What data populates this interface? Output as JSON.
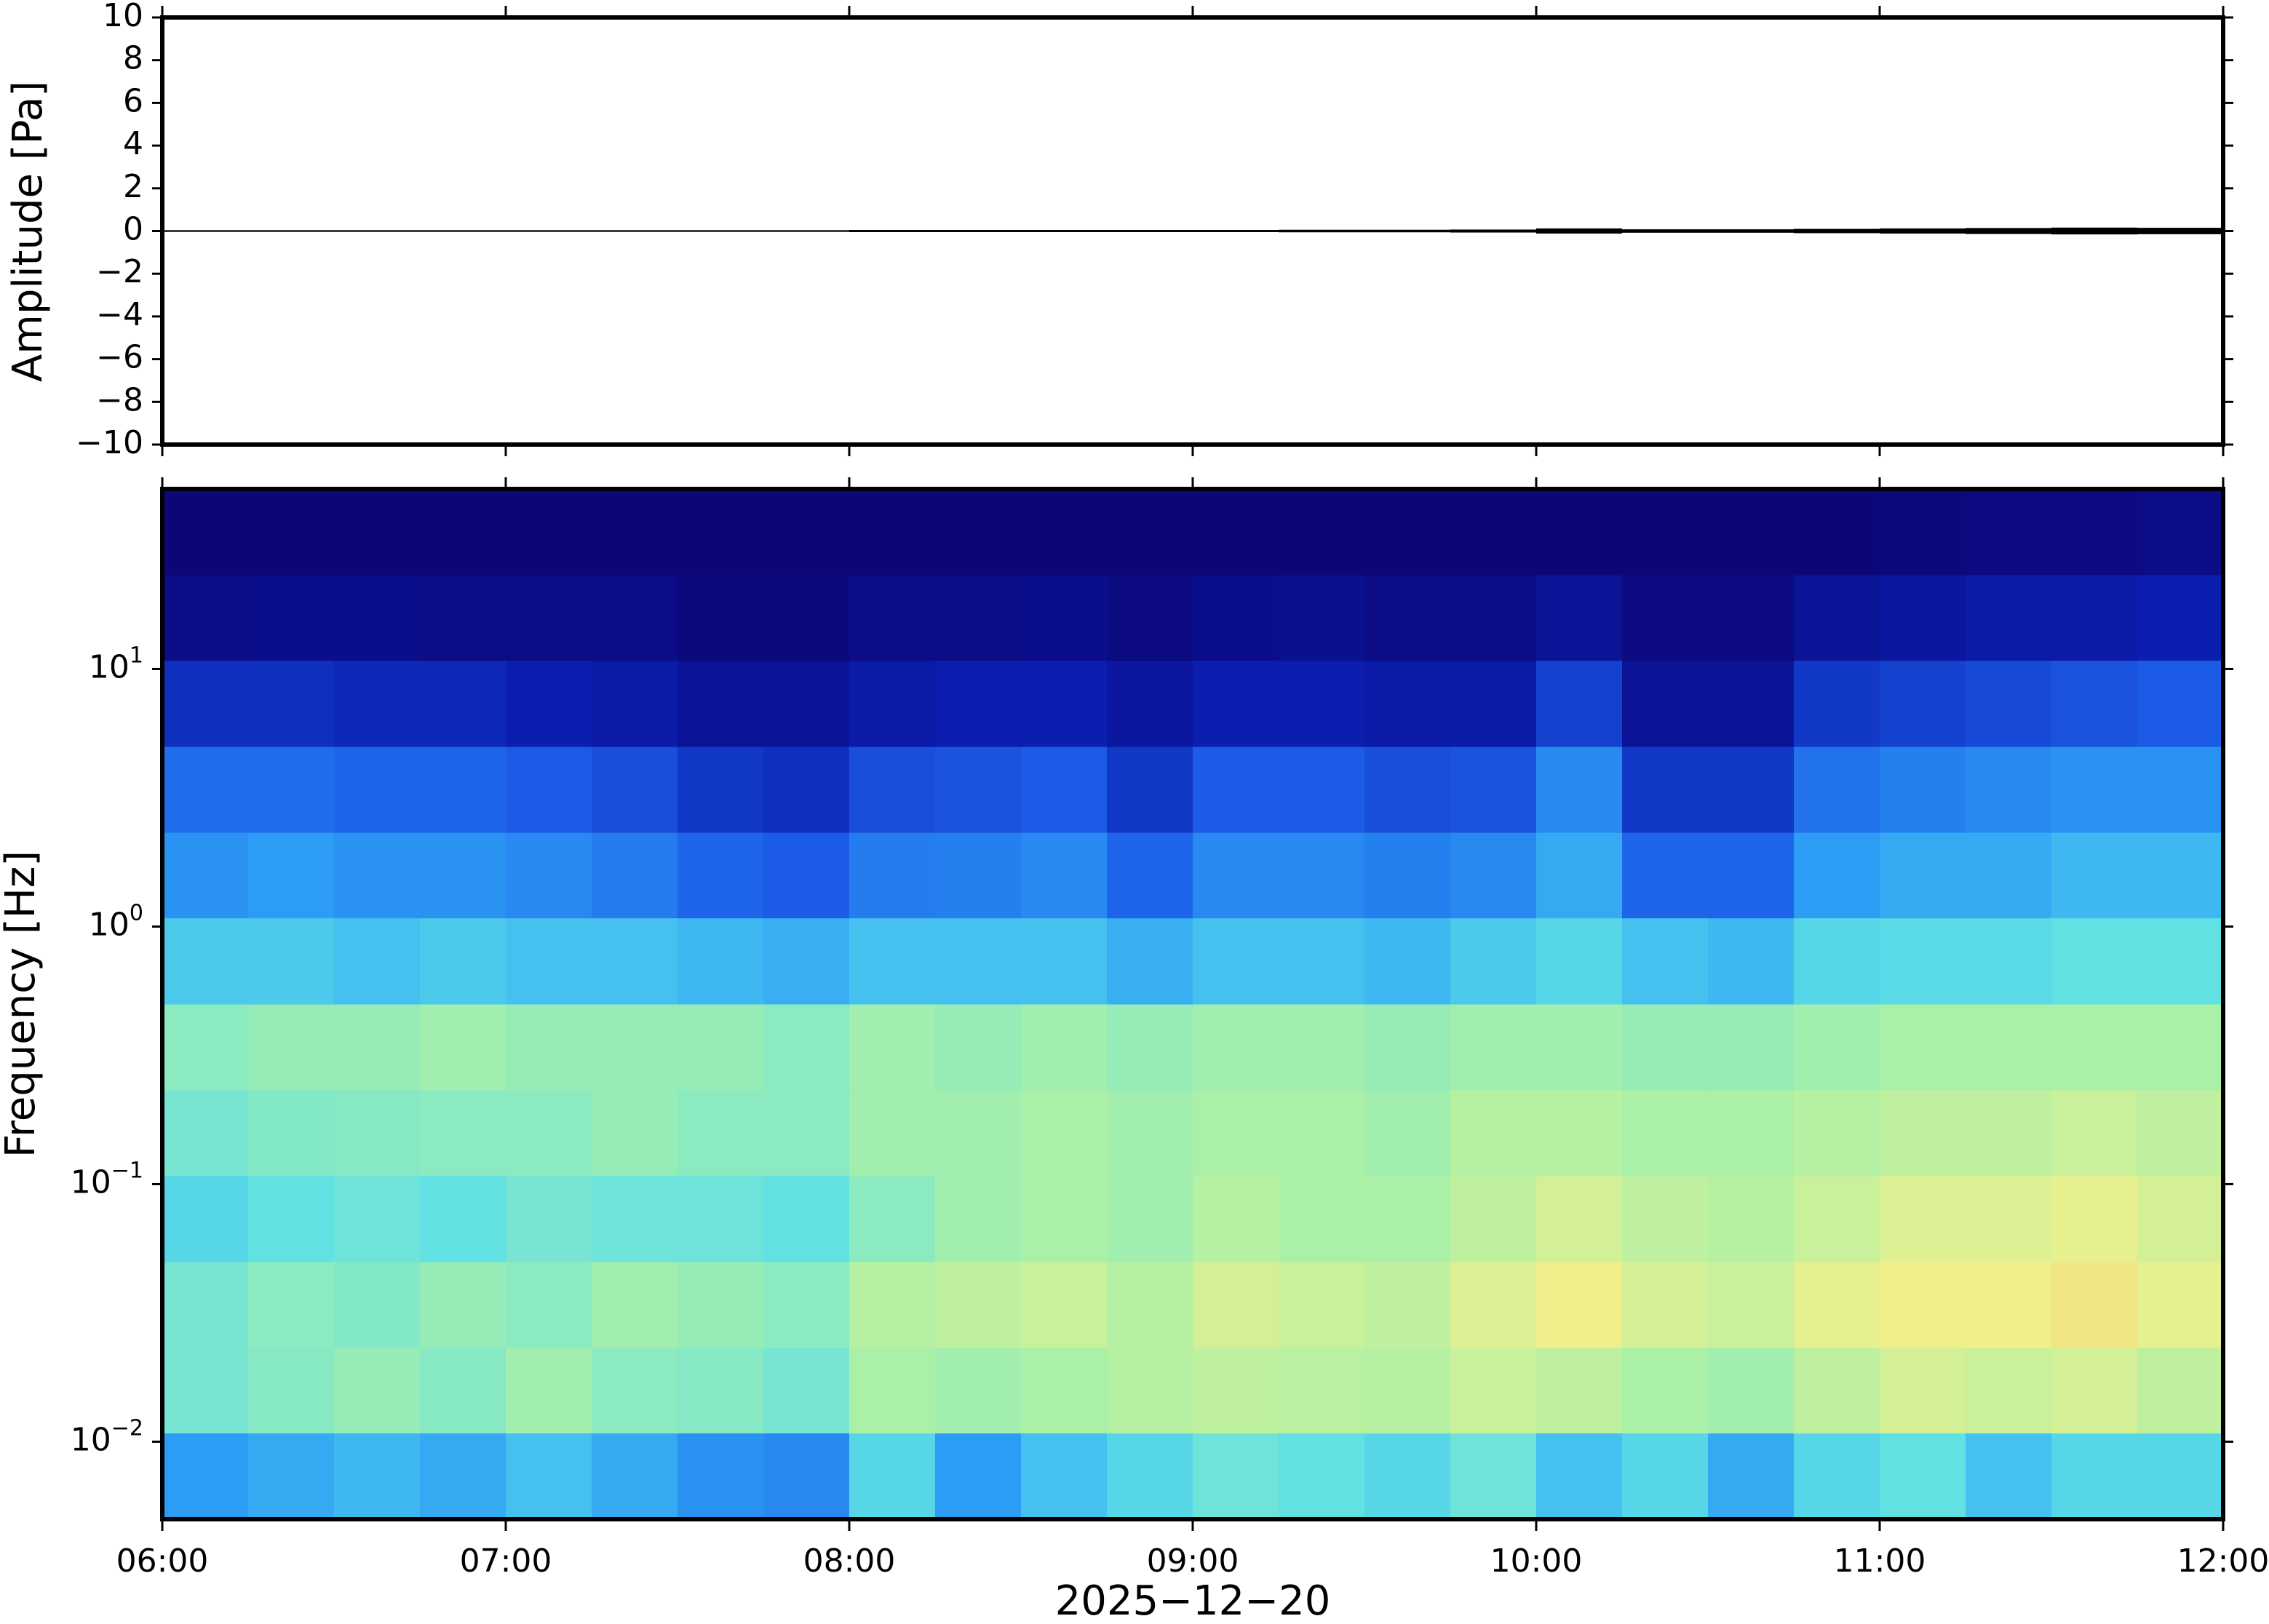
{
  "chart_data": [
    {
      "type": "area",
      "ylabel": "Amplitude [Pa]",
      "color": "#000000",
      "x": [
        "06:00",
        "06:15",
        "06:30",
        "06:45",
        "07:00",
        "07:15",
        "07:30",
        "07:45",
        "08:00",
        "08:15",
        "08:30",
        "08:45",
        "09:00",
        "09:15",
        "09:30",
        "09:45",
        "10:00",
        "10:15",
        "10:30",
        "10:45",
        "11:00",
        "11:15",
        "11:30",
        "11:45"
      ],
      "values": [
        0.04,
        0.04,
        0.04,
        0.04,
        0.04,
        0.04,
        0.04,
        0.04,
        0.05,
        0.05,
        0.05,
        0.05,
        0.05,
        0.06,
        0.06,
        0.07,
        0.12,
        0.08,
        0.08,
        0.1,
        0.12,
        0.14,
        0.16,
        0.15
      ],
      "ylim": [
        -10,
        10
      ],
      "yticks": [
        {
          "value": -10,
          "label": "−10"
        },
        {
          "value": -8,
          "label": "−8"
        },
        {
          "value": -6,
          "label": "−6"
        },
        {
          "value": -4,
          "label": "−4"
        },
        {
          "value": -2,
          "label": "−2"
        },
        0,
        2,
        4,
        6,
        8,
        10
      ]
    },
    {
      "type": "heatmap",
      "ylabel": "Frequency [Hz]",
      "xlabel": "2025−12−20",
      "log_y": true,
      "xlim": [
        "06:00",
        "12:00"
      ],
      "xticks": [
        "06:00",
        "07:00",
        "08:00",
        "09:00",
        "10:00",
        "11:00",
        "12:00"
      ],
      "ylim": [
        0.005,
        50
      ],
      "yticks": [
        {
          "value": 0.01,
          "label": "10",
          "power": "−2"
        },
        {
          "value": 0.1,
          "label": "10",
          "power": "−1"
        },
        {
          "value": 1,
          "label": "10",
          "power": "0"
        },
        {
          "value": 10,
          "label": "10",
          "power": "1"
        }
      ],
      "x": [
        "06:00",
        "06:15",
        "06:30",
        "06:45",
        "07:00",
        "07:15",
        "07:30",
        "07:45",
        "08:00",
        "08:15",
        "08:30",
        "08:45",
        "09:00",
        "09:15",
        "09:30",
        "09:45",
        "10:00",
        "10:15",
        "10:30",
        "10:45",
        "11:00",
        "11:15",
        "11:30",
        "11:45"
      ],
      "y_edges": [
        0.005,
        0.0108,
        0.0232,
        0.05,
        0.108,
        0.232,
        0.5,
        1.08,
        2.32,
        5,
        10.8,
        23.2,
        50
      ],
      "zlim": [
        0,
        1
      ],
      "colormap": [
        "#0b0575",
        "#0b1fb0",
        "#1c5ee8",
        "#2ea0f5",
        "#5ee0e6",
        "#a8f0a8",
        "#f0f08c",
        "#f8b060"
      ],
      "z": [
        [
          0.42,
          0.45,
          0.48,
          0.45,
          0.5,
          0.45,
          0.4,
          0.38,
          0.55,
          0.42,
          0.5,
          0.55,
          0.6,
          0.58,
          0.55,
          0.6,
          0.5,
          0.55,
          0.45,
          0.55,
          0.58,
          0.5,
          0.55,
          0.55
        ],
        [
          0.62,
          0.65,
          0.68,
          0.65,
          0.7,
          0.66,
          0.65,
          0.62,
          0.72,
          0.7,
          0.72,
          0.74,
          0.76,
          0.75,
          0.74,
          0.78,
          0.76,
          0.72,
          0.7,
          0.76,
          0.8,
          0.78,
          0.8,
          0.76
        ],
        [
          0.62,
          0.66,
          0.64,
          0.68,
          0.66,
          0.7,
          0.68,
          0.66,
          0.74,
          0.76,
          0.78,
          0.74,
          0.8,
          0.78,
          0.76,
          0.82,
          0.86,
          0.8,
          0.78,
          0.84,
          0.86,
          0.86,
          0.88,
          0.84
        ],
        [
          0.55,
          0.58,
          0.6,
          0.58,
          0.62,
          0.6,
          0.6,
          0.58,
          0.66,
          0.7,
          0.72,
          0.7,
          0.74,
          0.72,
          0.72,
          0.76,
          0.8,
          0.76,
          0.74,
          0.78,
          0.82,
          0.82,
          0.84,
          0.8
        ],
        [
          0.62,
          0.64,
          0.65,
          0.66,
          0.66,
          0.68,
          0.66,
          0.66,
          0.7,
          0.7,
          0.72,
          0.7,
          0.72,
          0.72,
          0.7,
          0.74,
          0.74,
          0.72,
          0.72,
          0.74,
          0.76,
          0.76,
          0.78,
          0.76
        ],
        [
          0.66,
          0.68,
          0.68,
          0.7,
          0.68,
          0.68,
          0.68,
          0.66,
          0.7,
          0.68,
          0.7,
          0.68,
          0.7,
          0.7,
          0.68,
          0.7,
          0.7,
          0.68,
          0.68,
          0.7,
          0.72,
          0.72,
          0.72,
          0.72
        ],
        [
          0.52,
          0.52,
          0.5,
          0.52,
          0.5,
          0.5,
          0.48,
          0.46,
          0.5,
          0.5,
          0.5,
          0.46,
          0.5,
          0.5,
          0.48,
          0.52,
          0.55,
          0.5,
          0.48,
          0.55,
          0.56,
          0.56,
          0.58,
          0.58
        ],
        [
          0.4,
          0.42,
          0.4,
          0.4,
          0.38,
          0.35,
          0.3,
          0.28,
          0.35,
          0.36,
          0.38,
          0.3,
          0.38,
          0.38,
          0.36,
          0.38,
          0.45,
          0.3,
          0.3,
          0.42,
          0.45,
          0.45,
          0.48,
          0.48
        ],
        [
          0.32,
          0.32,
          0.3,
          0.3,
          0.28,
          0.25,
          0.2,
          0.18,
          0.25,
          0.26,
          0.28,
          0.2,
          0.28,
          0.28,
          0.25,
          0.26,
          0.38,
          0.2,
          0.2,
          0.33,
          0.36,
          0.38,
          0.4,
          0.4
        ],
        [
          0.18,
          0.18,
          0.16,
          0.16,
          0.14,
          0.12,
          0.08,
          0.08,
          0.12,
          0.14,
          0.14,
          0.1,
          0.14,
          0.14,
          0.12,
          0.12,
          0.22,
          0.08,
          0.08,
          0.2,
          0.22,
          0.24,
          0.26,
          0.28
        ],
        [
          0.04,
          0.05,
          0.05,
          0.04,
          0.04,
          0.04,
          0.02,
          0.02,
          0.04,
          0.04,
          0.05,
          0.03,
          0.05,
          0.06,
          0.04,
          0.04,
          0.08,
          0.03,
          0.03,
          0.08,
          0.1,
          0.12,
          0.12,
          0.14
        ],
        [
          0.01,
          0.01,
          0.01,
          0.01,
          0.01,
          0.01,
          0.01,
          0.01,
          0.01,
          0.01,
          0.01,
          0.01,
          0.01,
          0.01,
          0.01,
          0.01,
          0.01,
          0.01,
          0.01,
          0.01,
          0.02,
          0.03,
          0.03,
          0.04
        ]
      ]
    }
  ]
}
